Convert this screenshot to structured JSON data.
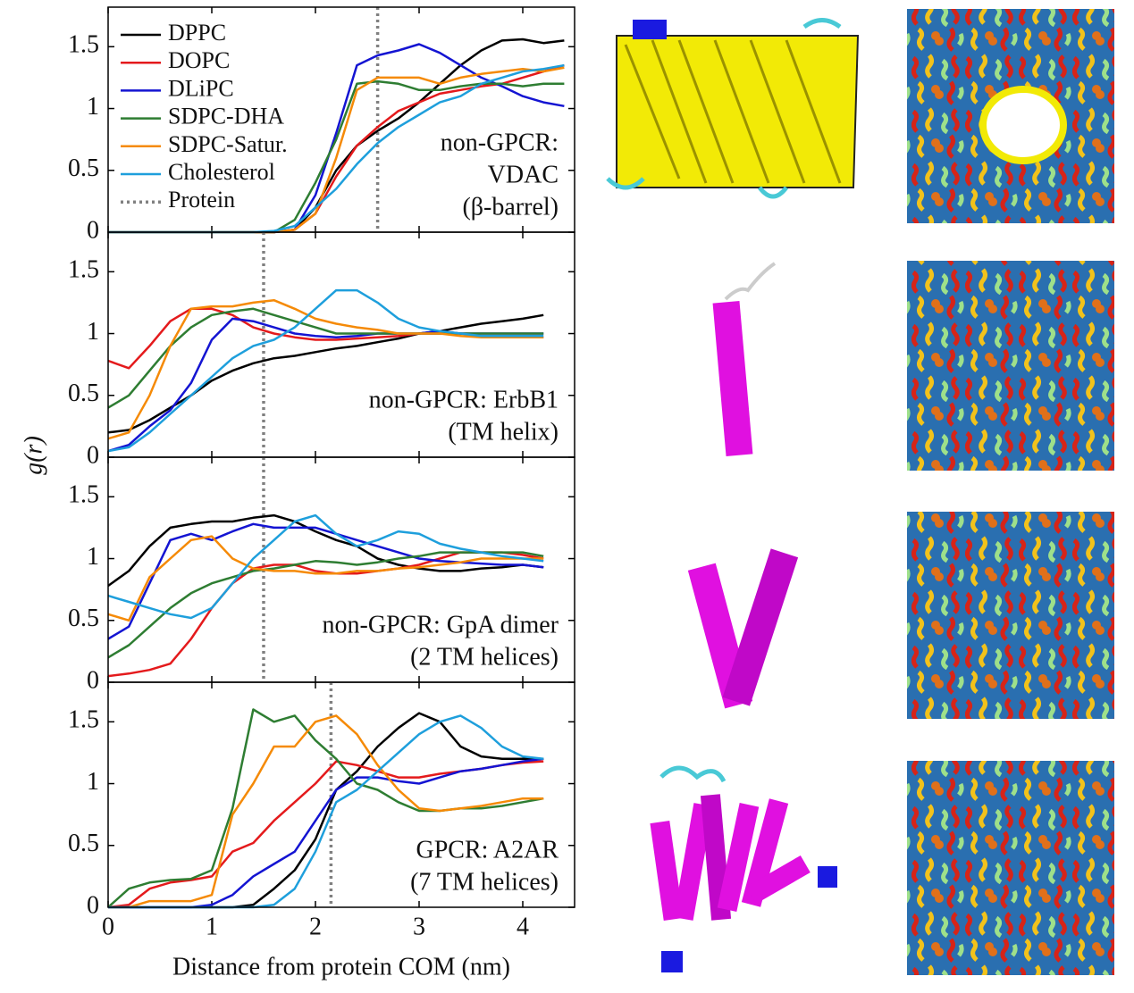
{
  "ylabel": "g(r)",
  "xlabel": "Distance from protein COM (nm)",
  "chart_data": [
    {
      "type": "line",
      "xlim": [
        0,
        4.5
      ],
      "ylim": [
        0,
        1.82
      ],
      "xticks": [
        0,
        1,
        2,
        3,
        4
      ],
      "yticks": [
        0,
        0.5,
        1,
        1.5
      ],
      "legend": "upper left",
      "annotation": [
        "non-GPCR:",
        "VDAC",
        "(β-barrel)"
      ],
      "protein": {
        "name": "Protein",
        "x": 2.6,
        "color": "#808080"
      },
      "x": [
        0,
        0.2,
        0.4,
        0.6,
        0.8,
        1.0,
        1.2,
        1.4,
        1.6,
        1.8,
        2.0,
        2.2,
        2.4,
        2.6,
        2.8,
        3.0,
        3.2,
        3.4,
        3.6,
        3.8,
        4.0,
        4.2,
        4.4
      ],
      "series": [
        {
          "name": "DPPC",
          "color": "#000000",
          "values": [
            0,
            0,
            0,
            0,
            0,
            0,
            0,
            0,
            0,
            0.02,
            0.2,
            0.5,
            0.7,
            0.82,
            0.92,
            1.05,
            1.2,
            1.35,
            1.47,
            1.55,
            1.56,
            1.53,
            1.55
          ]
        },
        {
          "name": "DOPC",
          "color": "#e41a1c",
          "values": [
            0,
            0,
            0,
            0,
            0,
            0,
            0,
            0,
            0,
            0.02,
            0.15,
            0.45,
            0.7,
            0.85,
            0.98,
            1.05,
            1.12,
            1.15,
            1.18,
            1.2,
            1.25,
            1.3,
            1.35
          ]
        },
        {
          "name": "DLiPC",
          "color": "#1414d2",
          "values": [
            0,
            0,
            0,
            0,
            0,
            0,
            0,
            0,
            0,
            0.02,
            0.3,
            0.8,
            1.35,
            1.43,
            1.47,
            1.52,
            1.45,
            1.35,
            1.25,
            1.18,
            1.1,
            1.05,
            1.02
          ]
        },
        {
          "name": "SDPC-DHA",
          "color": "#2e7d32",
          "values": [
            0,
            0,
            0,
            0,
            0,
            0,
            0,
            0,
            0,
            0.1,
            0.4,
            0.75,
            1.2,
            1.22,
            1.2,
            1.15,
            1.15,
            1.18,
            1.2,
            1.2,
            1.18,
            1.2,
            1.2
          ]
        },
        {
          "name": "SDPC-Satur.",
          "color": "#f58a07",
          "values": [
            0,
            0,
            0,
            0,
            0,
            0,
            0,
            0,
            0,
            0.02,
            0.15,
            0.6,
            1.15,
            1.25,
            1.25,
            1.25,
            1.2,
            1.25,
            1.28,
            1.3,
            1.32,
            1.3,
            1.33
          ]
        },
        {
          "name": "Cholesterol",
          "color": "#1e9fdc",
          "values": [
            0,
            0,
            0,
            0,
            0,
            0,
            0,
            0,
            0.01,
            0.05,
            0.2,
            0.35,
            0.55,
            0.72,
            0.85,
            0.95,
            1.05,
            1.1,
            1.2,
            1.25,
            1.3,
            1.32,
            1.35
          ]
        }
      ]
    },
    {
      "type": "line",
      "xlim": [
        0,
        4.5
      ],
      "ylim": [
        0,
        1.82
      ],
      "xticks": [
        0,
        1,
        2,
        3,
        4
      ],
      "yticks": [
        0,
        0.5,
        1,
        1.5
      ],
      "annotation": [
        "non-GPCR: ErbB1",
        "(TM helix)"
      ],
      "protein": {
        "x": 1.5,
        "color": "#808080"
      },
      "x": [
        0,
        0.2,
        0.4,
        0.6,
        0.8,
        1.0,
        1.2,
        1.4,
        1.6,
        1.8,
        2.0,
        2.2,
        2.4,
        2.6,
        2.8,
        3.0,
        3.2,
        3.4,
        3.6,
        3.8,
        4.0,
        4.2
      ],
      "series": [
        {
          "color": "#000000",
          "values": [
            0.2,
            0.22,
            0.3,
            0.4,
            0.5,
            0.62,
            0.7,
            0.76,
            0.8,
            0.82,
            0.85,
            0.88,
            0.9,
            0.93,
            0.96,
            1.0,
            1.02,
            1.05,
            1.08,
            1.1,
            1.12,
            1.15
          ]
        },
        {
          "color": "#e41a1c",
          "values": [
            0.78,
            0.72,
            0.9,
            1.1,
            1.2,
            1.2,
            1.15,
            1.05,
            1.0,
            0.97,
            0.95,
            0.95,
            0.96,
            0.97,
            0.98,
            1.0,
            1.0,
            1.0,
            0.98,
            0.97,
            0.97,
            0.97
          ]
        },
        {
          "color": "#1414d2",
          "values": [
            0.05,
            0.1,
            0.25,
            0.38,
            0.6,
            0.95,
            1.12,
            1.1,
            1.05,
            1.0,
            0.98,
            0.97,
            0.98,
            1.0,
            1.0,
            1.0,
            1.02,
            1.0,
            1.0,
            1.0,
            1.0,
            1.0
          ]
        },
        {
          "color": "#2e7d32",
          "values": [
            0.4,
            0.5,
            0.7,
            0.9,
            1.05,
            1.15,
            1.18,
            1.2,
            1.15,
            1.1,
            1.05,
            1.0,
            1.0,
            1.0,
            1.0,
            1.0,
            1.0,
            1.0,
            1.0,
            1.0,
            1.0,
            1.0
          ]
        },
        {
          "color": "#f58a07",
          "values": [
            0.15,
            0.2,
            0.5,
            0.9,
            1.2,
            1.22,
            1.22,
            1.25,
            1.27,
            1.2,
            1.12,
            1.08,
            1.05,
            1.03,
            1.0,
            1.0,
            1.0,
            0.98,
            0.97,
            0.97,
            0.97,
            0.97
          ]
        },
        {
          "color": "#1e9fdc",
          "values": [
            0.05,
            0.08,
            0.2,
            0.35,
            0.5,
            0.65,
            0.8,
            0.9,
            0.95,
            1.05,
            1.2,
            1.35,
            1.35,
            1.25,
            1.12,
            1.05,
            1.02,
            1.0,
            0.98,
            0.98,
            0.98,
            0.98
          ]
        }
      ]
    },
    {
      "type": "line",
      "xlim": [
        0,
        4.5
      ],
      "ylim": [
        0,
        1.82
      ],
      "xticks": [
        0,
        1,
        2,
        3,
        4
      ],
      "yticks": [
        0,
        0.5,
        1,
        1.5
      ],
      "annotation": [
        "non-GPCR: GpA dimer",
        "(2 TM helices)"
      ],
      "protein": {
        "x": 1.5,
        "color": "#808080"
      },
      "x": [
        0,
        0.2,
        0.4,
        0.6,
        0.8,
        1.0,
        1.2,
        1.4,
        1.6,
        1.8,
        2.0,
        2.2,
        2.4,
        2.6,
        2.8,
        3.0,
        3.2,
        3.4,
        3.6,
        3.8,
        4.0,
        4.2
      ],
      "series": [
        {
          "color": "#000000",
          "values": [
            0.78,
            0.9,
            1.1,
            1.25,
            1.28,
            1.3,
            1.3,
            1.33,
            1.35,
            1.3,
            1.22,
            1.15,
            1.1,
            1.0,
            0.95,
            0.92,
            0.9,
            0.9,
            0.92,
            0.93,
            0.95,
            0.93
          ]
        },
        {
          "color": "#e41a1c",
          "values": [
            0.05,
            0.07,
            0.1,
            0.15,
            0.35,
            0.6,
            0.8,
            0.92,
            0.95,
            0.95,
            0.9,
            0.88,
            0.88,
            0.9,
            0.92,
            0.95,
            1.0,
            1.05,
            1.05,
            1.05,
            1.03,
            1.0
          ]
        },
        {
          "color": "#1414d2",
          "values": [
            0.35,
            0.45,
            0.8,
            1.15,
            1.2,
            1.15,
            1.22,
            1.28,
            1.25,
            1.25,
            1.25,
            1.2,
            1.15,
            1.1,
            1.05,
            1.0,
            0.98,
            0.97,
            0.96,
            0.95,
            0.95,
            0.93
          ]
        },
        {
          "color": "#2e7d32",
          "values": [
            0.2,
            0.3,
            0.45,
            0.6,
            0.72,
            0.8,
            0.85,
            0.9,
            0.92,
            0.95,
            0.98,
            0.97,
            0.95,
            0.97,
            1.0,
            1.02,
            1.05,
            1.05,
            1.05,
            1.05,
            1.05,
            1.02
          ]
        },
        {
          "color": "#f58a07",
          "values": [
            0.55,
            0.5,
            0.85,
            1.0,
            1.15,
            1.18,
            1.0,
            0.92,
            0.9,
            0.9,
            0.88,
            0.88,
            0.9,
            0.9,
            0.92,
            0.93,
            0.95,
            0.97,
            1.0,
            1.0,
            1.0,
            1.0
          ]
        },
        {
          "color": "#1e9fdc",
          "values": [
            0.7,
            0.65,
            0.6,
            0.55,
            0.52,
            0.6,
            0.8,
            1.0,
            1.15,
            1.3,
            1.35,
            1.2,
            1.1,
            1.15,
            1.22,
            1.2,
            1.12,
            1.08,
            1.05,
            1.02,
            1.0,
            0.98
          ]
        }
      ]
    },
    {
      "type": "line",
      "xlim": [
        0,
        4.5
      ],
      "ylim": [
        0,
        1.82
      ],
      "xticks": [
        0,
        1,
        2,
        3,
        4
      ],
      "yticks": [
        0,
        0.5,
        1,
        1.5
      ],
      "annotation": [
        "GPCR: A2AR",
        "(7 TM helices)"
      ],
      "protein": {
        "x": 2.15,
        "color": "#808080"
      },
      "x": [
        0,
        0.2,
        0.4,
        0.6,
        0.8,
        1.0,
        1.2,
        1.4,
        1.6,
        1.8,
        2.0,
        2.2,
        2.4,
        2.6,
        2.8,
        3.0,
        3.2,
        3.4,
        3.6,
        3.8,
        4.0,
        4.2
      ],
      "series": [
        {
          "color": "#000000",
          "values": [
            0,
            0,
            0,
            0,
            0,
            0,
            0,
            0.02,
            0.15,
            0.3,
            0.55,
            0.95,
            1.1,
            1.3,
            1.45,
            1.57,
            1.5,
            1.3,
            1.22,
            1.2,
            1.2,
            1.2
          ]
        },
        {
          "color": "#e41a1c",
          "values": [
            0,
            0.02,
            0.15,
            0.2,
            0.22,
            0.25,
            0.45,
            0.52,
            0.7,
            0.85,
            1.0,
            1.18,
            1.15,
            1.1,
            1.05,
            1.05,
            1.08,
            1.1,
            1.12,
            1.15,
            1.17,
            1.18
          ]
        },
        {
          "color": "#1414d2",
          "values": [
            0,
            0,
            0,
            0,
            0,
            0.02,
            0.1,
            0.25,
            0.35,
            0.45,
            0.7,
            0.95,
            1.05,
            1.05,
            1.02,
            1.0,
            1.05,
            1.1,
            1.12,
            1.15,
            1.18,
            1.2
          ]
        },
        {
          "color": "#2e7d32",
          "values": [
            0,
            0.15,
            0.2,
            0.22,
            0.23,
            0.3,
            0.8,
            1.6,
            1.5,
            1.55,
            1.35,
            1.2,
            1.0,
            0.95,
            0.85,
            0.78,
            0.78,
            0.8,
            0.8,
            0.82,
            0.85,
            0.88
          ]
        },
        {
          "color": "#f58a07",
          "values": [
            0,
            0,
            0.05,
            0.05,
            0.05,
            0.1,
            0.75,
            1.0,
            1.3,
            1.3,
            1.5,
            1.55,
            1.4,
            1.15,
            0.95,
            0.8,
            0.78,
            0.8,
            0.82,
            0.85,
            0.88,
            0.88
          ]
        },
        {
          "color": "#1e9fdc",
          "values": [
            0,
            0,
            0,
            0,
            0,
            0,
            0,
            0,
            0.02,
            0.15,
            0.45,
            0.85,
            0.95,
            1.1,
            1.25,
            1.4,
            1.5,
            1.55,
            1.45,
            1.3,
            1.22,
            1.2
          ]
        }
      ]
    }
  ]
}
